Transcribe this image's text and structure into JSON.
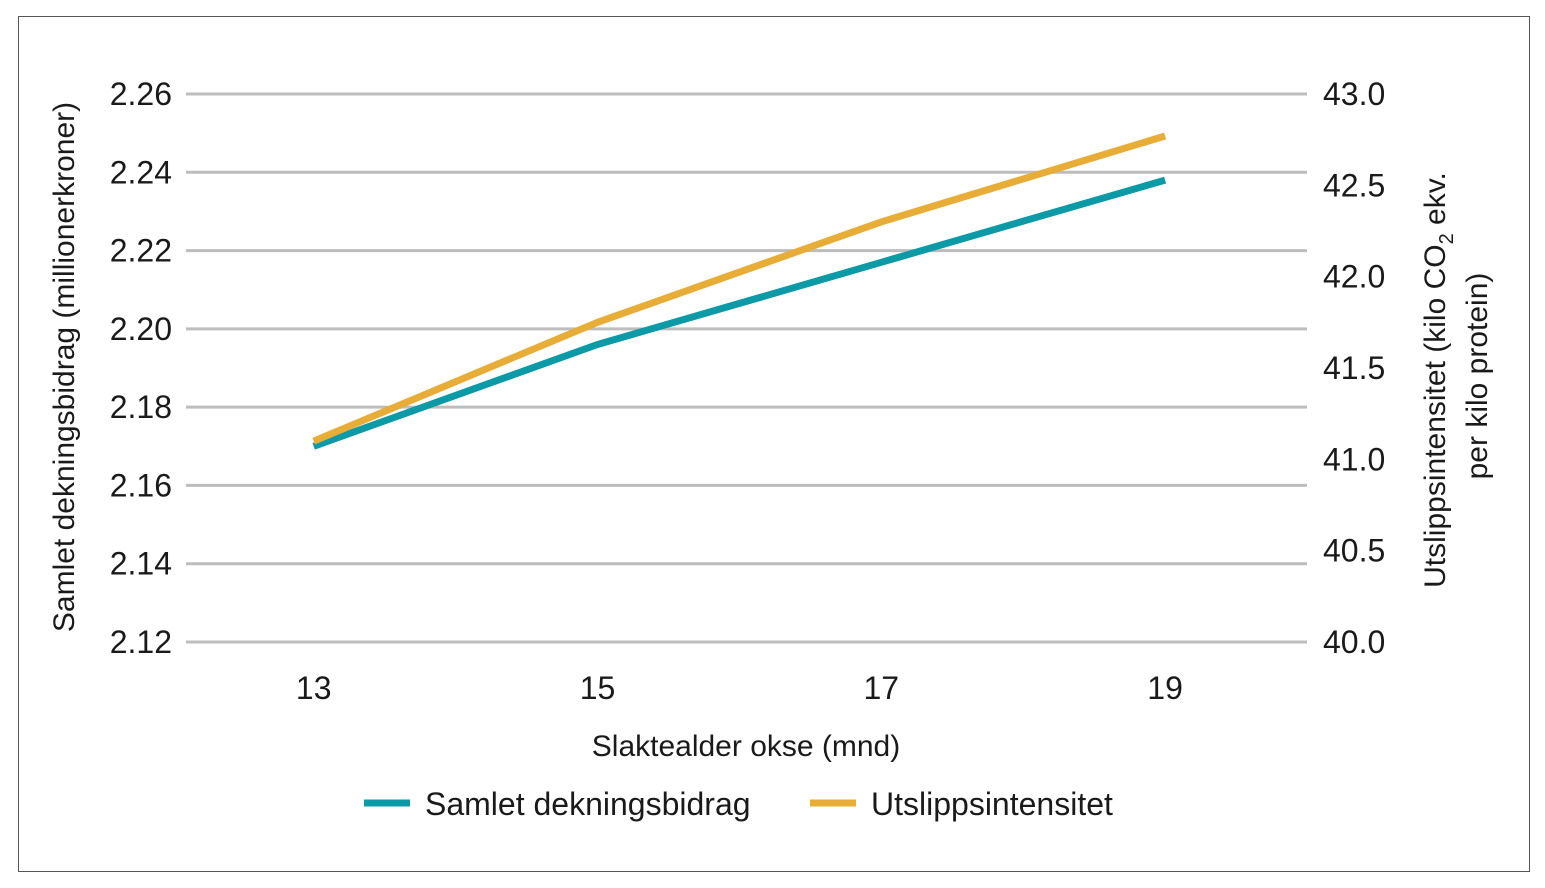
{
  "chart_data": {
    "type": "line",
    "x": [
      13,
      15,
      17,
      19
    ],
    "xlabel": "Slaktealder okse (mnd)",
    "ylabel_left": "Samlet dekningsbidrag (millionerkroner)",
    "ylabel_right_line1_pre": "Utslippsintensitet (kilo CO",
    "ylabel_right_sub": "2",
    "ylabel_right_line1_post": " ekv.",
    "ylabel_right_line2": "per kilo protein)",
    "xticks": [
      "13",
      "15",
      "17",
      "19"
    ],
    "yticks_left": [
      "2.12",
      "2.14",
      "2.16",
      "2.18",
      "2.20",
      "2.22",
      "2.24",
      "2.26"
    ],
    "yticks_right": [
      "40.0",
      "40.5",
      "41.0",
      "41.5",
      "42.0",
      "42.5",
      "43.0"
    ],
    "xlim": [
      12.1,
      20.0
    ],
    "ylim_left": [
      2.12,
      2.26
    ],
    "ylim_right": [
      40.0,
      43.0
    ],
    "grid": true,
    "legend_position": "bottom",
    "series": [
      {
        "name": "Samlet dekningsbidrag",
        "axis": "left",
        "color": "#0c9aa6",
        "x": [
          13,
          15,
          17,
          19
        ],
        "values": [
          2.17,
          2.196,
          2.217,
          2.238
        ]
      },
      {
        "name": "Utslippsintensitet",
        "axis": "right",
        "color": "#e8ad37",
        "x": [
          13,
          15,
          17,
          19
        ],
        "values": [
          41.1,
          41.75,
          42.3,
          42.77
        ]
      }
    ]
  }
}
